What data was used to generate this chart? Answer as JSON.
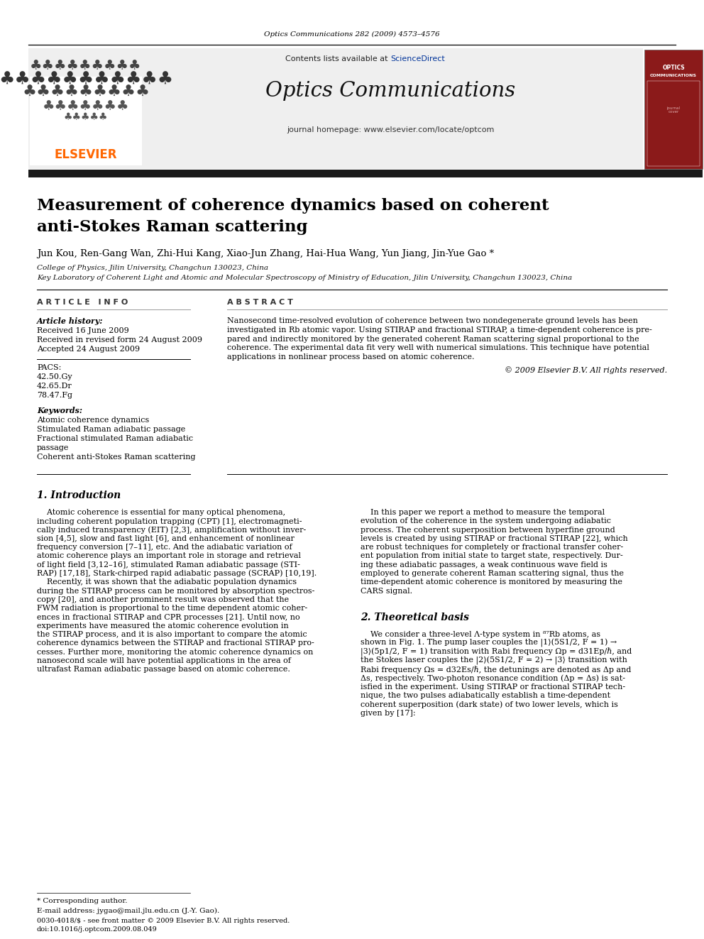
{
  "journal_citation": "Optics Communications 282 (2009) 4573–4576",
  "journal_name": "Optics Communications",
  "journal_url": "journal homepage: www.elsevier.com/locate/optcom",
  "contents_line": "Contents lists available at ScienceDirect",
  "science_direct_color": "#003399",
  "paper_title_line1": "Measurement of coherence dynamics based on coherent",
  "paper_title_line2": "anti-Stokes Raman scattering",
  "authors": "Jun Kou, Ren-Gang Wan, Zhi-Hui Kang, Xiao-Jun Zhang, Hai-Hua Wang, Yun Jiang, Jin-Yue Gao *",
  "affil1": "College of Physics, Jilin University, Changchun 130023, China",
  "affil2": "Key Laboratory of Coherent Light and Atomic and Molecular Spectroscopy of Ministry of Education, Jilin University, Changchun 130023, China",
  "article_info_header": "A R T I C L E   I N F O",
  "abstract_header": "A B S T R A C T",
  "article_history_label": "Article history:",
  "received_date": "Received 16 June 2009",
  "revised_date": "Received in revised form 24 August 2009",
  "accepted_date": "Accepted 24 August 2009",
  "pacs_label": "PACS:",
  "pacs1": "42.50.Gy",
  "pacs2": "42.65.Dr",
  "pacs3": "78.47.Fg",
  "keywords_label": "Keywords:",
  "keyword1": "Atomic coherence dynamics",
  "keyword2": "Stimulated Raman adiabatic passage",
  "keyword3": "Fractional stimulated Raman adiabatic",
  "keyword3b": "passage",
  "keyword4": "Coherent anti-Stokes Raman scattering",
  "abstract_text_lines": [
    "Nanosecond time-resolved evolution of coherence between two nondegenerate ground levels has been",
    "investigated in Rb atomic vapor. Using STIRAP and fractional STIRAP, a time-dependent coherence is pre-",
    "pared and indirectly monitored by the generated coherent Raman scattering signal proportional to the",
    "coherence. The experimental data fit very well with numerical simulations. This technique have potential",
    "applications in nonlinear process based on atomic coherence."
  ],
  "copyright": "© 2009 Elsevier B.V. All rights reserved.",
  "section1_title": "1. Introduction",
  "intro_left_lines": [
    "    Atomic coherence is essential for many optical phenomena,",
    "including coherent population trapping (CPT) [1], electromagneti-",
    "cally induced transparency (EIT) [2,3], amplification without inver-",
    "sion [4,5], slow and fast light [6], and enhancement of nonlinear",
    "frequency conversion [7–11], etc. And the adiabatic variation of",
    "atomic coherence plays an important role in storage and retrieval",
    "of light field [3,12–16], stimulated Raman adiabatic passage (STI-",
    "RAP) [17,18], Stark-chirped rapid adiabatic passage (SCRAP) [10,19].",
    "    Recently, it was shown that the adiabatic population dynamics",
    "during the STIRAP process can be monitored by absorption spectros-",
    "copy [20], and another prominent result was observed that the",
    "FWM radiation is proportional to the time dependent atomic coher-",
    "ences in fractional STIRAP and CPR processes [21]. Until now, no",
    "experiments have measured the atomic coherence evolution in",
    "the STIRAP process, and it is also important to compare the atomic",
    "coherence dynamics between the STIRAP and fractional STIRAP pro-",
    "cesses. Further more, monitoring the atomic coherence dynamics on",
    "nanosecond scale will have potential applications in the area of",
    "ultrafast Raman adiabatic passage based on atomic coherence."
  ],
  "intro_right_lines": [
    "    In this paper we report a method to measure the temporal",
    "evolution of the coherence in the system undergoing adiabatic",
    "process. The coherent superposition between hyperfine ground",
    "levels is created by using STIRAP or fractional STIRAP [22], which",
    "are robust techniques for completely or fractional transfer coher-",
    "ent population from initial state to target state, respectively. Dur-",
    "ing these adiabatic passages, a weak continuous wave field is",
    "employed to generate coherent Raman scattering signal, thus the",
    "time-dependent atomic coherence is monitored by measuring the",
    "CARS signal."
  ],
  "section2_title": "2. Theoretical basis",
  "section2_right_lines": [
    "    We consider a three-level Λ-type system in ⁸⁷Rb atoms, as",
    "shown in Fig. 1. The pump laser couples the |1⟩(5S1/2, F = 1) →",
    "|3⟩(5p1/2, F = 1) transition with Rabi frequency Ωp = d31Ep/ℏ, and",
    "the Stokes laser couples the |2⟩(5S1/2, F = 2) → |3⟩ transition with",
    "Rabi frequency Ωs = d32Es/ℏ, the detunings are denoted as Δp and",
    "Δs, respectively. Two-photon resonance condition (Δp = Δs) is sat-",
    "isfied in the experiment. Using STIRAP or fractional STIRAP tech-",
    "nique, the two pulses adiabatically establish a time-dependent",
    "coherent superposition (dark state) of two lower levels, which is",
    "given by [17]:"
  ],
  "footnote_star": "* Corresponding author.",
  "footnote_email": "E-mail address: jygao@mail.jlu.edu.cn (J.-Y. Gao).",
  "footnote_doi": "doi:10.1016/j.optcom.2009.08.049",
  "footnote_issn": "0030-4018/$ - see front matter © 2009 Elsevier B.V. All rights reserved.",
  "elsevier_color": "#FF6600",
  "header_bg": "#efefef",
  "thick_bar_color": "#1a1a1a",
  "background_color": "#ffffff"
}
